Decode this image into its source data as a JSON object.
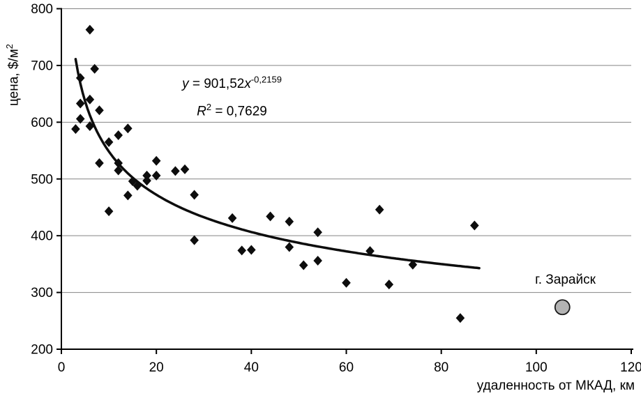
{
  "chart_data": {
    "type": "scatter",
    "title": "",
    "xlabel": "удаленность от МКАД, км",
    "ylabel": "цена, $/м2",
    "ylabel_main": "цена, $/м",
    "ylabel_sup": "2",
    "xlim": [
      0,
      120
    ],
    "ylim": [
      200,
      800
    ],
    "x_ticks": [
      0,
      20,
      40,
      60,
      80,
      100,
      120
    ],
    "y_ticks": [
      200,
      300,
      400,
      500,
      600,
      700,
      800
    ],
    "grid": "horizontal",
    "legend": "none",
    "points": [
      [
        3,
        588
      ],
      [
        4,
        678
      ],
      [
        4,
        633
      ],
      [
        4,
        606
      ],
      [
        6,
        763
      ],
      [
        6,
        640
      ],
      [
        6,
        593
      ],
      [
        7,
        694
      ],
      [
        8,
        621
      ],
      [
        8,
        528
      ],
      [
        10,
        565
      ],
      [
        10,
        443
      ],
      [
        12,
        577
      ],
      [
        12,
        528
      ],
      [
        12,
        515
      ],
      [
        14,
        589
      ],
      [
        14,
        471
      ],
      [
        15,
        496
      ],
      [
        16,
        488
      ],
      [
        18,
        506
      ],
      [
        18,
        497
      ],
      [
        20,
        532
      ],
      [
        20,
        506
      ],
      [
        24,
        514
      ],
      [
        26,
        517
      ],
      [
        28,
        472
      ],
      [
        28,
        392
      ],
      [
        36,
        431
      ],
      [
        38,
        374
      ],
      [
        40,
        375
      ],
      [
        44,
        434
      ],
      [
        48,
        425
      ],
      [
        48,
        380
      ],
      [
        51,
        348
      ],
      [
        54,
        406
      ],
      [
        54,
        356
      ],
      [
        60,
        317
      ],
      [
        65,
        373
      ],
      [
        67,
        446
      ],
      [
        69,
        314
      ],
      [
        74,
        349
      ],
      [
        84,
        255
      ],
      [
        87,
        418
      ]
    ],
    "trendline": {
      "type": "power",
      "coefficient": 901.52,
      "exponent": -0.2159,
      "x_start": 3,
      "x_end": 88,
      "r_squared": 0.7629
    },
    "equation_label": {
      "y_var": "y",
      "body": " = 901,52",
      "x_var": "x",
      "exp_sup": "-0,2159"
    },
    "r2_label": {
      "r_var": "R",
      "sup": "2",
      "rest": " = 0,7629"
    },
    "annotation": {
      "label": "г. Зарайск",
      "x": 105.5,
      "y": 274,
      "marker": "gray-circle"
    }
  },
  "colors": {
    "background": "#ffffff",
    "point": "#0d0d0d",
    "trendline": "#0d0d0d",
    "gridline": "#848484",
    "axis": "#000000",
    "annotation_fill": "#b3b3b3",
    "annotation_stroke": "#1a1a1a"
  }
}
